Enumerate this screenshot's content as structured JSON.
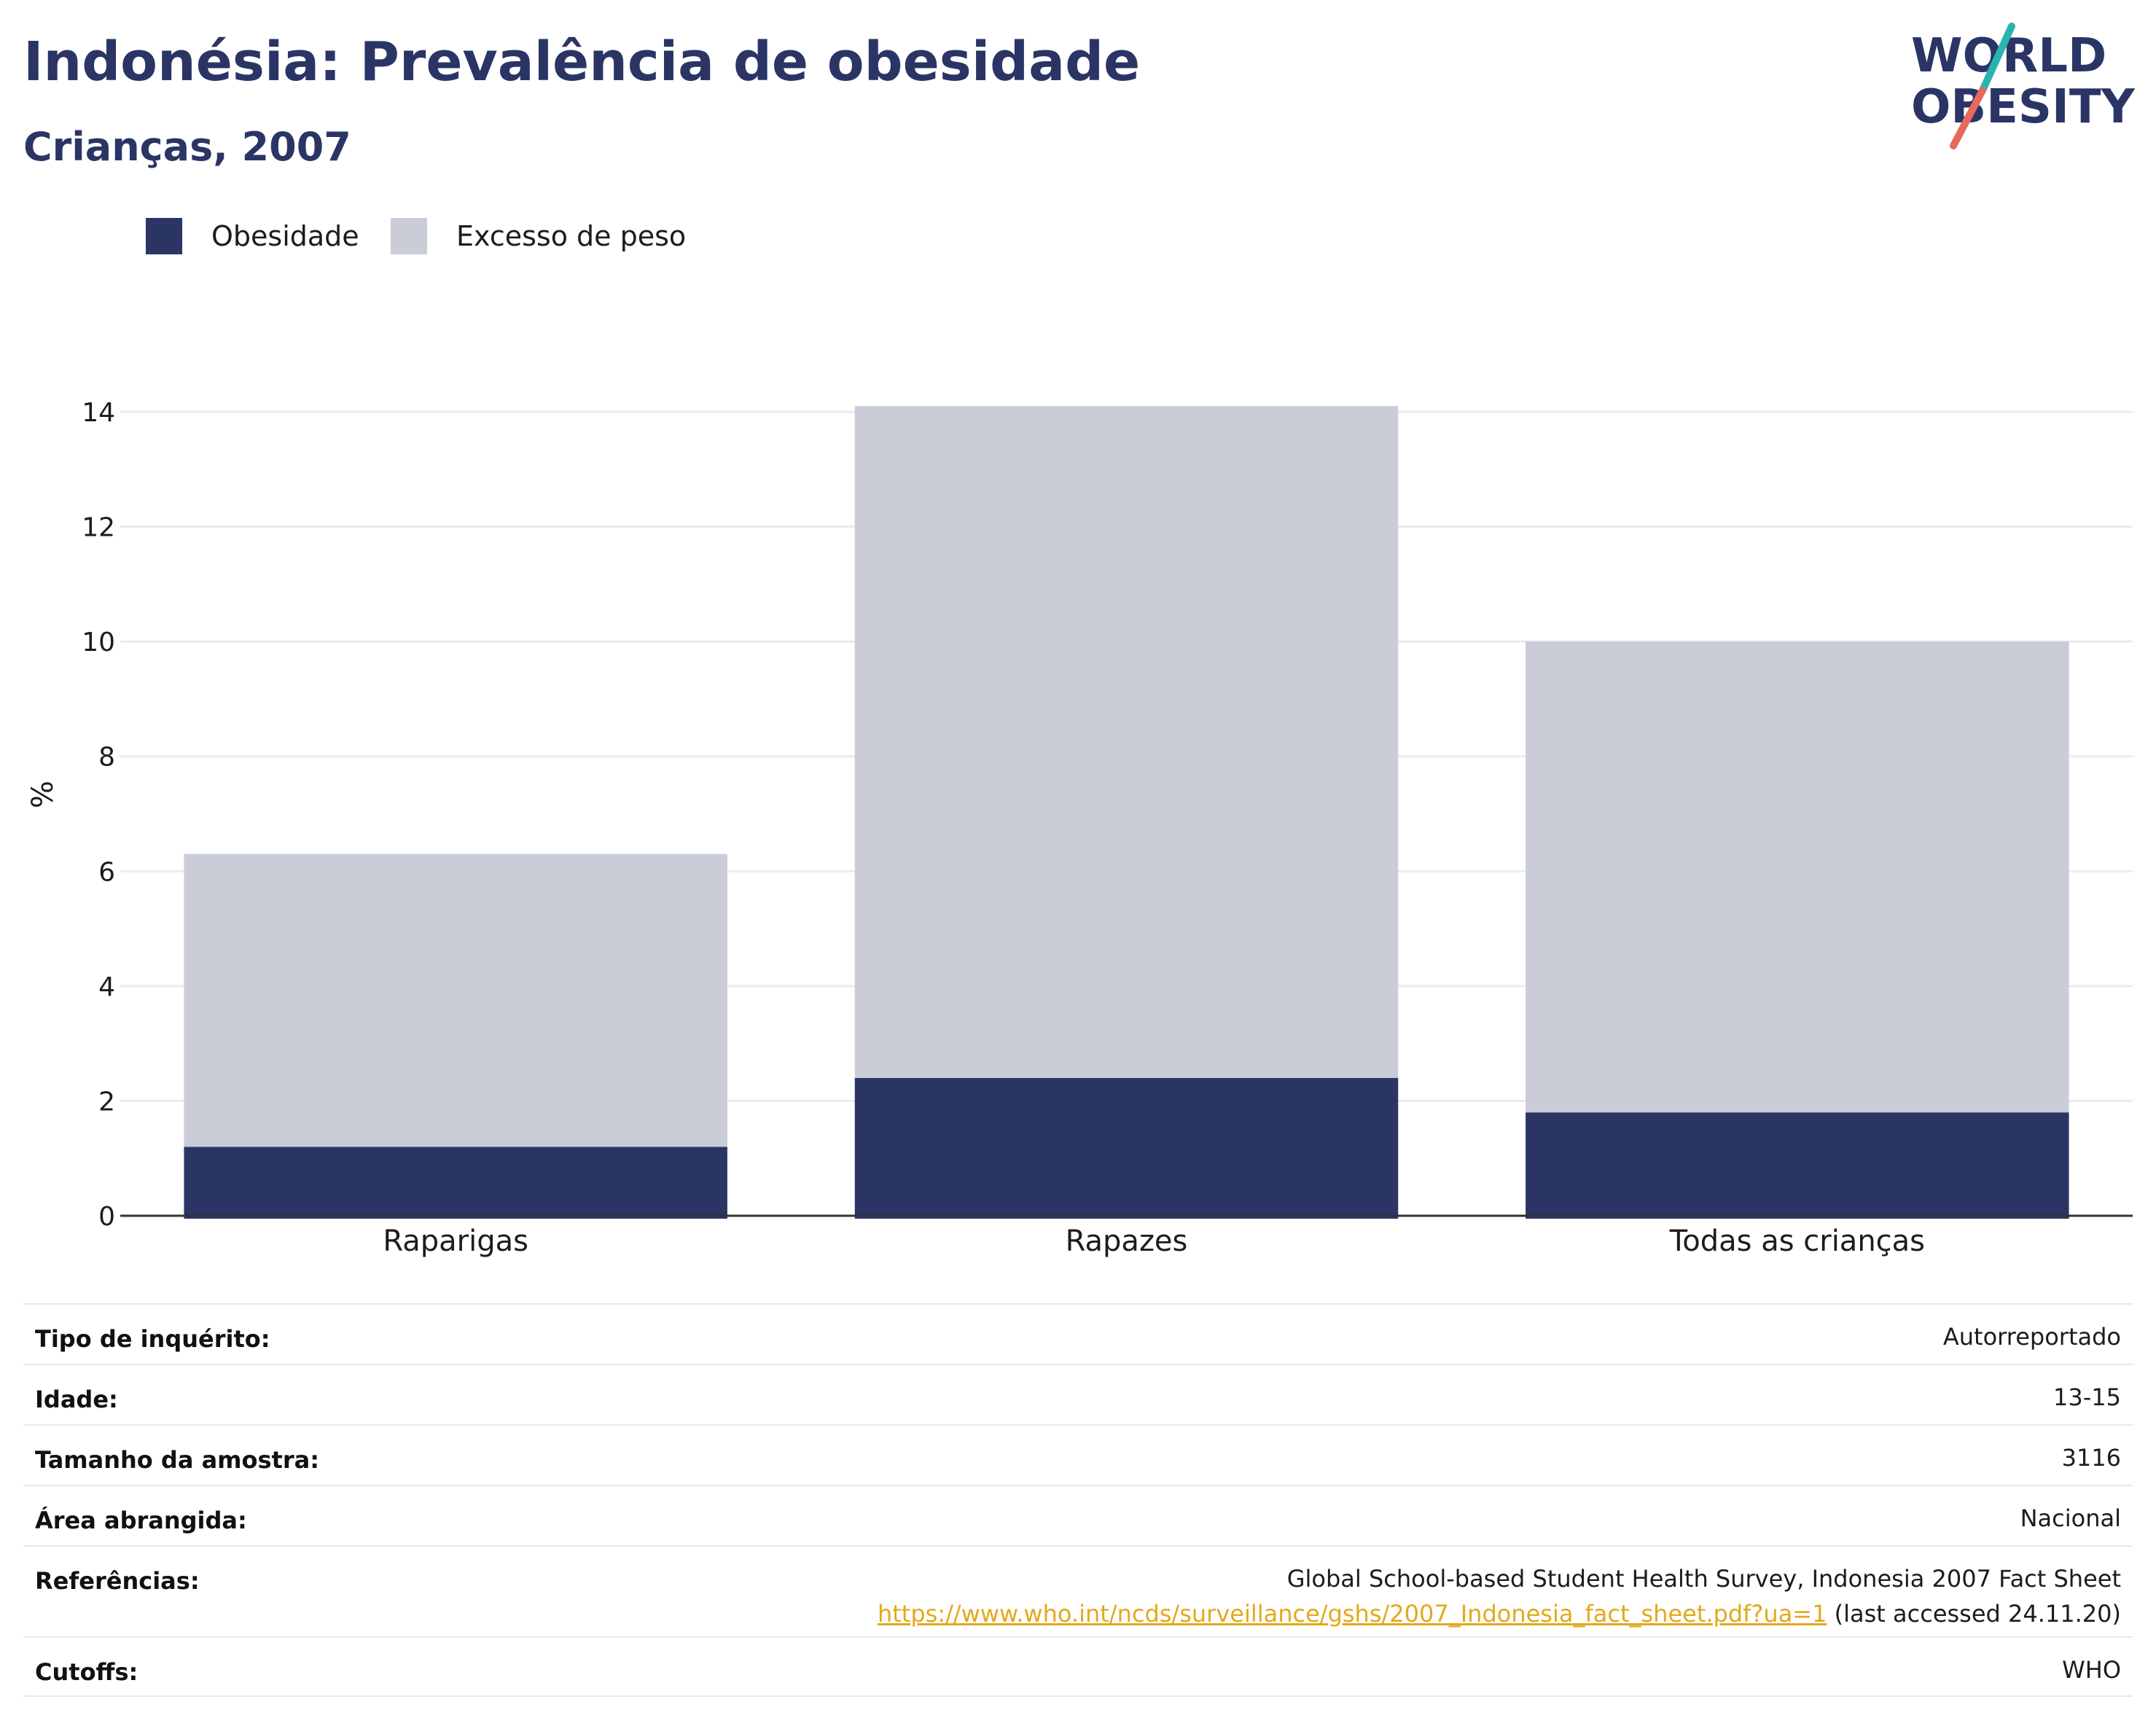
{
  "header": {
    "title": "Indonésia: Prevalência de obesidade",
    "subtitle": "Crianças, 2007"
  },
  "logo": {
    "line1": "WORLD",
    "line2": "OBESITY",
    "colors": {
      "text": "#2a3566",
      "slash_top": "#2bb3b0",
      "slash_bottom": "#e8695a"
    }
  },
  "legend": [
    {
      "label": "Obesidade",
      "color": "#2a3566"
    },
    {
      "label": "Excesso de peso",
      "color": "#caccd7"
    }
  ],
  "chart_data": {
    "type": "bar",
    "stacked": true,
    "categories": [
      "Raparigas",
      "Rapazes",
      "Todas as crianças"
    ],
    "series": [
      {
        "name": "Obesidade",
        "values": [
          1.2,
          2.4,
          1.8
        ],
        "color": "#2a3566"
      },
      {
        "name": "Excesso de peso",
        "values": [
          5.1,
          11.7,
          8.2
        ],
        "color": "#caccd7"
      }
    ],
    "ylabel": "%",
    "ylim": [
      0,
      14
    ],
    "yticks": [
      0,
      2,
      4,
      6,
      8,
      10,
      12,
      14
    ],
    "grid": true,
    "legend_position": "top-left"
  },
  "info": {
    "rows": [
      {
        "key": "Tipo de inquérito:",
        "value": "Autorreportado"
      },
      {
        "key": "Idade:",
        "value": "13-15"
      },
      {
        "key": "Tamanho da amostra:",
        "value": "3116"
      },
      {
        "key": "Área abrangida:",
        "value": "Nacional"
      }
    ],
    "references": {
      "key": "Referências:",
      "text": "Global School-based Student Health Survey, Indonesia 2007 Fact Sheet",
      "link": "https://www.who.int/ncds/surveillance/gshs/2007_Indonesia_fact_sheet.pdf?ua=1",
      "suffix": " (last accessed 24.11.20)"
    },
    "cutoffs": {
      "key": "Cutoffs:",
      "value": "WHO"
    }
  }
}
